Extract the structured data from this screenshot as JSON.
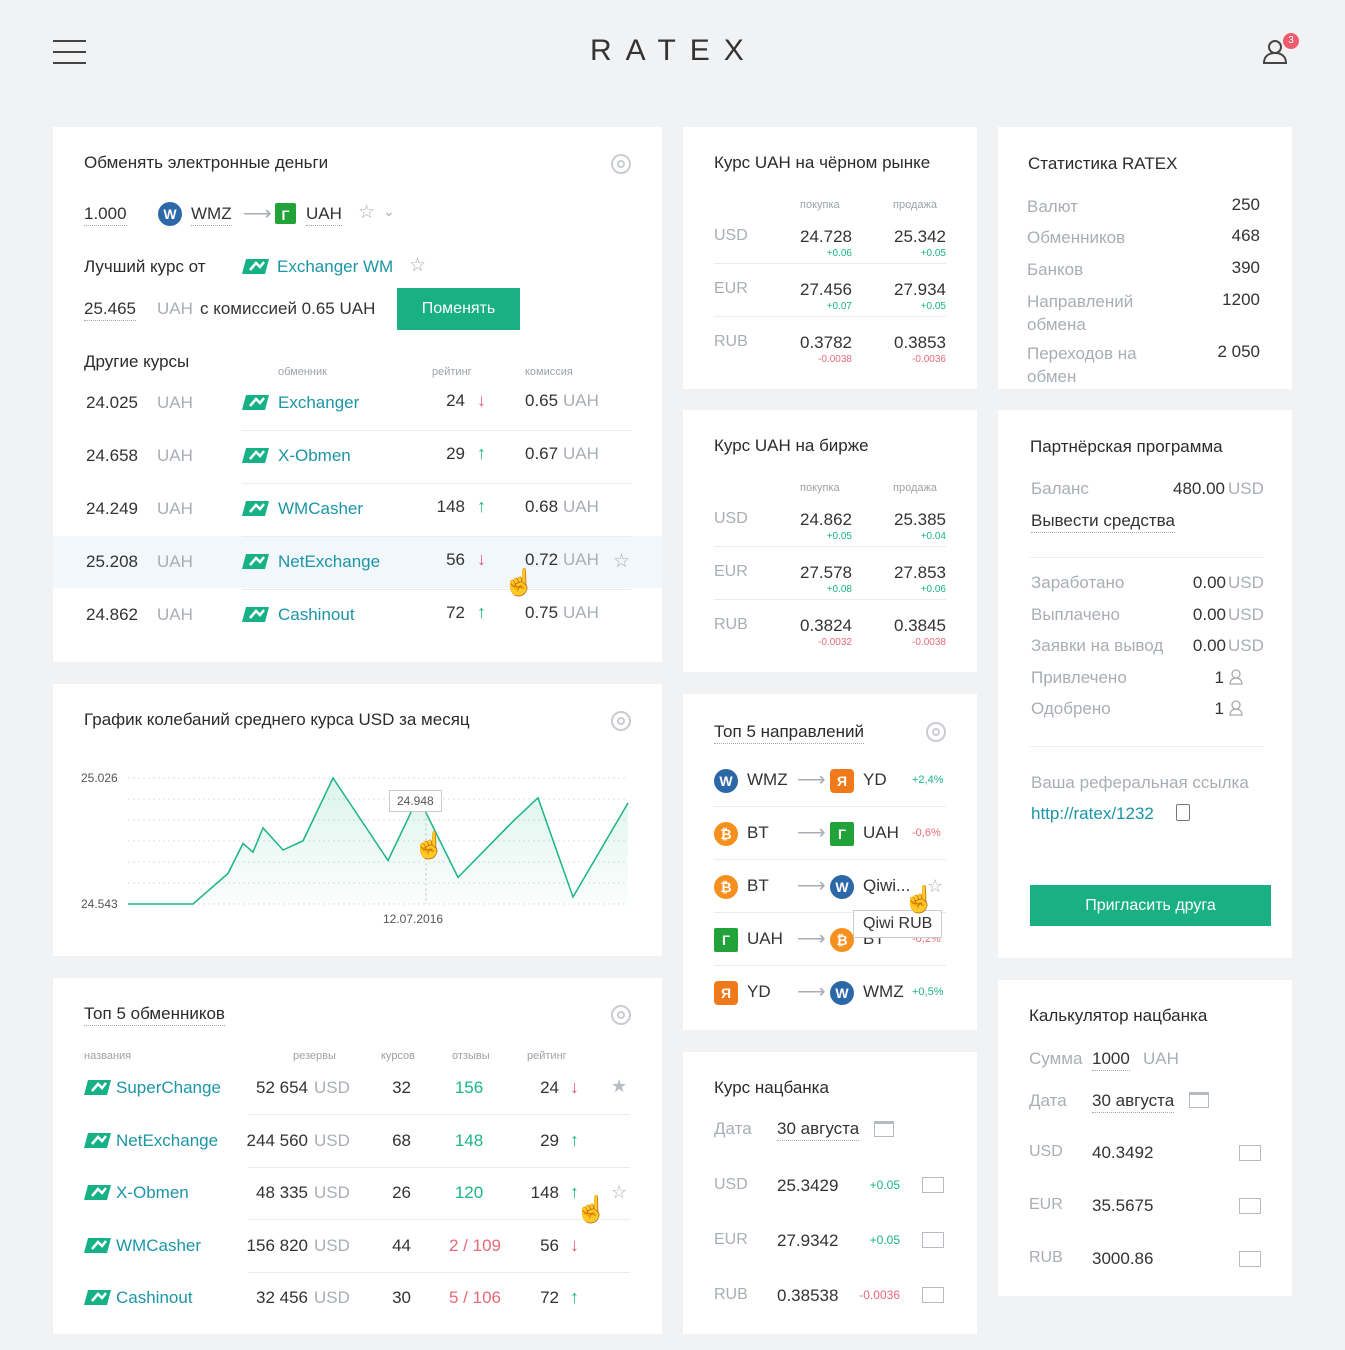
{
  "header": {
    "logo": "RATEX",
    "notifications": "3"
  },
  "exchange": {
    "title": "Обменять электронные деньги",
    "amount": "1.000",
    "from": "WMZ",
    "to": "UAH",
    "best_label": "Лучший курс от",
    "best_name": "Exchanger WM",
    "best_rate": "25.465",
    "best_cur": "UAH",
    "commission": "с комиссией 0.65 UAH",
    "button": "Поменять",
    "other_title": "Другие курсы",
    "cols": {
      "exchanger": "обменник",
      "rating": "рейтинг",
      "commission": "комиссия"
    },
    "rows": [
      {
        "rate": "24.025",
        "cur": "UAH",
        "name": "Exchanger",
        "rating": "24",
        "dir": "↓",
        "comm": "0.65",
        "ccur": "UAH"
      },
      {
        "rate": "24.658",
        "cur": "UAH",
        "name": "X-Obmen",
        "rating": "29",
        "dir": "↑",
        "comm": "0.67",
        "ccur": "UAH"
      },
      {
        "rate": "24.249",
        "cur": "UAH",
        "name": "WMCasher",
        "rating": "148",
        "dir": "↑",
        "comm": "0.68",
        "ccur": "UAH"
      },
      {
        "rate": "25.208",
        "cur": "UAH",
        "name": "NetExchange",
        "rating": "56",
        "dir": "↓",
        "comm": "0.72",
        "ccur": "UAH"
      },
      {
        "rate": "24.862",
        "cur": "UAH",
        "name": "Cashinout",
        "rating": "72",
        "dir": "↑",
        "comm": "0.75",
        "ccur": "UAH"
      }
    ]
  },
  "chart": {
    "title": "График колебаний среднего курса USD за месяц",
    "tooltip": "24.948",
    "date": "12.07.2016"
  },
  "chart_data": {
    "type": "line",
    "y_labels": [
      "25.026",
      "24.543"
    ],
    "ylim": [
      24.543,
      25.026
    ],
    "values": [
      24.543,
      24.543,
      24.543,
      24.66,
      24.775,
      24.742,
      24.835,
      24.75,
      24.785,
      25.026,
      24.71,
      24.87,
      24.955,
      24.645,
      24.86,
      24.95,
      24.57,
      24.93
    ],
    "highlight_value": 24.948,
    "x_label": "12.07.2016"
  },
  "top_exch": {
    "title": "Топ 5 обменников",
    "cols": {
      "name": "названия",
      "reserves": "резервы",
      "rates": "курсов",
      "reviews": "отзывы",
      "rating": "рейтинг"
    },
    "rows": [
      {
        "name": "SuperChange",
        "reserve": "52 654",
        "cur": "USD",
        "rates": "32",
        "rev_bad": "",
        "rev_good": "156",
        "rating": "24",
        "dir": "↓"
      },
      {
        "name": "NetExchange",
        "reserve": "244 560",
        "cur": "USD",
        "rates": "68",
        "rev_bad": "",
        "rev_good": "148",
        "rating": "29",
        "dir": "↑"
      },
      {
        "name": "X-Obmen",
        "reserve": "48 335",
        "cur": "USD",
        "rates": "26",
        "rev_bad": "",
        "rev_good": "120",
        "rating": "148",
        "dir": "↑"
      },
      {
        "name": "WMCasher",
        "reserve": "156 820",
        "cur": "USD",
        "rates": "44",
        "rev_bad": "2 / 109",
        "rev_good": "",
        "rating": "56",
        "dir": "↓"
      },
      {
        "name": "Cashinout",
        "reserve": "32 456",
        "cur": "USD",
        "rates": "30",
        "rev_bad": "5 / 106",
        "rev_good": "",
        "rating": "72",
        "dir": "↑"
      }
    ]
  },
  "black": {
    "title": "Курс UAH на чёрном рынке",
    "buy": "покупка",
    "sell": "продажа",
    "rows": [
      {
        "cur": "USD",
        "buy": "24.728",
        "bd": "+0.06",
        "sell": "25.342",
        "sd": "+0.05"
      },
      {
        "cur": "EUR",
        "buy": "27.456",
        "bd": "+0.07",
        "sell": "27.934",
        "sd": "+0.05"
      },
      {
        "cur": "RUB",
        "buy": "0.3782",
        "bd": "-0.0038",
        "sell": "0.3853",
        "sd": "-0.0036"
      }
    ]
  },
  "birzha": {
    "title": "Курс UAH на бирже",
    "buy": "покупка",
    "sell": "продажа",
    "rows": [
      {
        "cur": "USD",
        "buy": "24.862",
        "bd": "+0.05",
        "sell": "25.385",
        "sd": "+0.04"
      },
      {
        "cur": "EUR",
        "buy": "27.578",
        "bd": "+0.08",
        "sell": "27.853",
        "sd": "+0.06"
      },
      {
        "cur": "RUB",
        "buy": "0.3824",
        "bd": "-0.0032",
        "sell": "0.3845",
        "sd": "-0.0038"
      }
    ]
  },
  "top_dir": {
    "title": "Топ 5 направлений",
    "rows": [
      {
        "from": "WMZ",
        "to": "YD",
        "pct": "+2,4%"
      },
      {
        "from": "BT",
        "to": "UAH",
        "pct": "-0,6%"
      },
      {
        "from": "BT",
        "to": "Qiwi...",
        "pct": ""
      },
      {
        "from": "UAH",
        "to": "BT",
        "pct": "-0,2%"
      },
      {
        "from": "YD",
        "to": "WMZ",
        "pct": "+0,5%"
      }
    ],
    "tooltip": "Qiwi RUB"
  },
  "nbu": {
    "title": "Курс нацбанка",
    "date_label": "Дата",
    "date": "30 августа",
    "rows": [
      {
        "cur": "USD",
        "val": "25.3429",
        "d": "+0.05"
      },
      {
        "cur": "EUR",
        "val": "27.9342",
        "d": "+0.05"
      },
      {
        "cur": "RUB",
        "val": "0.38538",
        "d": "-0.0036"
      }
    ]
  },
  "stats": {
    "title": "Статистика RATEX",
    "rows": [
      {
        "label": "Валют",
        "val": "250"
      },
      {
        "label": "Обменников",
        "val": "468"
      },
      {
        "label": "Банков",
        "val": "390"
      },
      {
        "label": "Направлений обмена",
        "val": "1200"
      },
      {
        "label": "Переходов на обмен",
        "val": "2 050"
      }
    ]
  },
  "partner": {
    "title": "Партнёрская программа",
    "balance_label": "Баланс",
    "balance": "480.00",
    "cur": "USD",
    "withdraw": "Вывести средства",
    "rows": [
      {
        "label": "Заработано",
        "val": "0.00",
        "cur": "USD"
      },
      {
        "label": "Выплачено",
        "val": "0.00",
        "cur": "USD"
      },
      {
        "label": "Заявки на вывод",
        "val": "0.00",
        "cur": "USD"
      },
      {
        "label": "Привлечено",
        "val": "1",
        "cur": ""
      },
      {
        "label": "Одобрено",
        "val": "1",
        "cur": ""
      }
    ],
    "ref_label": "Ваша реферальная ссылка",
    "ref_link": "http://ratex/1232",
    "invite": "Пригласить друга"
  },
  "calc": {
    "title": "Калькулятор нацбанка",
    "sum_label": "Сумма",
    "sum": "1000",
    "sum_cur": "UAH",
    "date_label": "Дата",
    "date": "30 августа",
    "rows": [
      {
        "cur": "USD",
        "val": "40.3492"
      },
      {
        "cur": "EUR",
        "val": "35.5675"
      },
      {
        "cur": "RUB",
        "val": "3000.86"
      }
    ]
  }
}
